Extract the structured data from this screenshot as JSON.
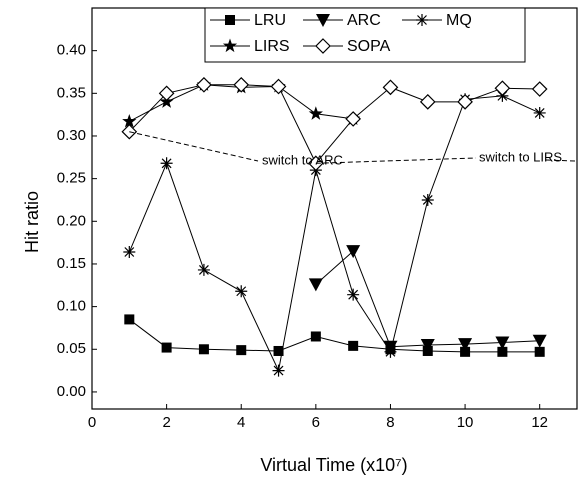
{
  "chart_data": {
    "type": "line",
    "xlabel": "Virtual Time (x10⁷)",
    "ylabel": "Hit ratio",
    "x": [
      1,
      2,
      3,
      4,
      5,
      6,
      7,
      8,
      9,
      10,
      11,
      12
    ],
    "series": [
      {
        "name": "LRU",
        "color": "#000000",
        "marker": "square",
        "values": [
          0.085,
          0.052,
          0.05,
          0.049,
          0.048,
          0.065,
          0.054,
          0.05,
          0.048,
          0.047,
          0.047,
          0.047
        ]
      },
      {
        "name": "ARC",
        "color": "#000000",
        "marker": "triangle-down",
        "values": [
          null,
          null,
          null,
          null,
          null,
          0.126,
          0.165,
          0.053,
          0.055,
          0.056,
          0.058,
          0.06
        ]
      },
      {
        "name": "MQ",
        "color": "#000000",
        "marker": "asterisk",
        "values": [
          0.164,
          0.268,
          0.143,
          0.118,
          0.025,
          0.26,
          0.114,
          0.047,
          0.225,
          0.343,
          0.347,
          0.327
        ]
      },
      {
        "name": "LIRS",
        "color": "#000000",
        "marker": "star",
        "values": [
          0.317,
          0.34,
          0.36,
          0.357,
          0.358,
          0.326,
          0.32,
          null,
          null,
          null,
          null,
          null
        ]
      },
      {
        "name": "SOPA",
        "color": "#000000",
        "marker": "diamond",
        "values": [
          0.305,
          0.35,
          0.36,
          0.36,
          0.358,
          0.268,
          0.32,
          0.357,
          0.34,
          0.34,
          0.356,
          0.355
        ]
      }
    ],
    "annotations": [
      "switch to ARC",
      "switch to LIRS"
    ],
    "xlim": [
      0,
      13
    ],
    "xticks": [
      0,
      2,
      4,
      6,
      8,
      10,
      12
    ],
    "ylim": [
      -0.02,
      0.45
    ],
    "yticks": [
      {
        "value": 0,
        "label": "0.00"
      },
      {
        "value": 0.05,
        "label": "0.05"
      },
      {
        "value": 0.1,
        "label": "0.10"
      },
      {
        "value": 0.15,
        "label": "0.15"
      },
      {
        "value": 0.2,
        "label": "0.20"
      },
      {
        "value": 0.25,
        "label": "0.25"
      },
      {
        "value": 0.3,
        "label": "0.30"
      },
      {
        "value": 0.35,
        "label": "0.35"
      },
      {
        "value": 0.4,
        "label": "0.40"
      }
    ]
  }
}
